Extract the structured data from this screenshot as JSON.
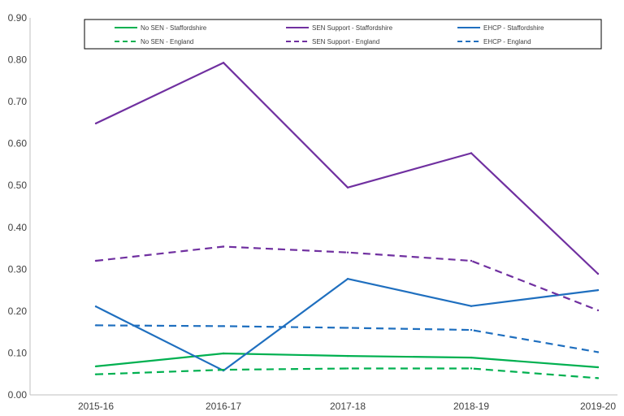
{
  "chart_data": {
    "type": "line",
    "categories": [
      "2015-16",
      "2016-17",
      "2017-18",
      "2018-19",
      "2019-20"
    ],
    "ylim": [
      0,
      0.9
    ],
    "yticks": [
      "0.00",
      "0.10",
      "0.20",
      "0.30",
      "0.40",
      "0.50",
      "0.60",
      "0.70",
      "0.80",
      "0.90"
    ],
    "grid": false,
    "legend_position": "top",
    "series": [
      {
        "name": "No SEN - Staffordshire",
        "color": "#00b050",
        "dashed": false,
        "values": [
          0.068,
          0.099,
          0.093,
          0.089,
          0.066
        ]
      },
      {
        "name": "SEN Support - Staffordshire",
        "color": "#7030a0",
        "dashed": false,
        "values": [
          0.648,
          0.793,
          0.495,
          0.577,
          0.289
        ]
      },
      {
        "name": "EHCP - Staffordshire",
        "color": "#1f6fbf",
        "dashed": false,
        "values": [
          0.211,
          0.058,
          0.277,
          0.212,
          0.25
        ]
      },
      {
        "name": "No SEN - England",
        "color": "#00b050",
        "dashed": true,
        "values": [
          0.049,
          0.06,
          0.063,
          0.063,
          0.04
        ]
      },
      {
        "name": "SEN Support - England",
        "color": "#7030a0",
        "dashed": true,
        "values": [
          0.32,
          0.354,
          0.34,
          0.32,
          0.202
        ]
      },
      {
        "name": "EHCP - England",
        "color": "#1f6fbf",
        "dashed": true,
        "values": [
          0.166,
          0.164,
          0.16,
          0.155,
          0.102
        ]
      }
    ]
  }
}
